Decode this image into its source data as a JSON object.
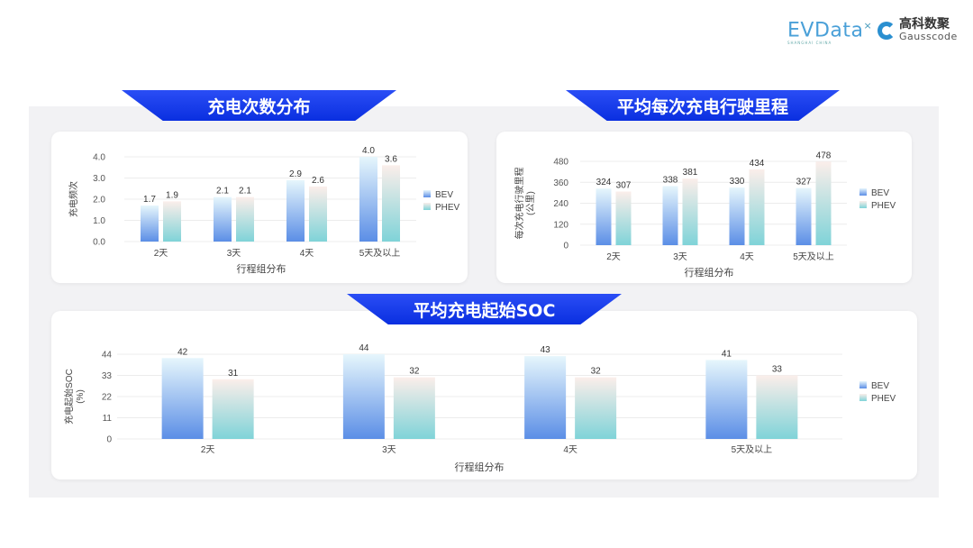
{
  "logos": {
    "evdata": "EVData",
    "evdata_sub": "SHANGHAI CHINA",
    "gauss_cn": "高科数聚",
    "gauss_en": "Gausscode"
  },
  "colors": {
    "bev_bottom": "#5b8ee6",
    "bev_top": "#e6f6fc",
    "phev_bottom": "#7fd3d8",
    "phev_top": "#fbeeea",
    "banner": "#1a3ef0"
  },
  "chart_data": [
    {
      "type": "bar",
      "title": "充电次数分布",
      "categories": [
        "2天",
        "3天",
        "4天",
        "5天及以上"
      ],
      "series": [
        {
          "name": "BEV",
          "values": [
            1.7,
            2.1,
            2.9,
            4.0
          ]
        },
        {
          "name": "PHEV",
          "values": [
            1.9,
            2.1,
            2.6,
            3.6
          ]
        }
      ],
      "xlabel": "行程组分布",
      "ylabel": "充电频次",
      "ylim": [
        0,
        4.0
      ],
      "yticks": [
        "0.0",
        "1.0",
        "2.0",
        "3.0",
        "4.0"
      ],
      "decimals": 1,
      "grid": true,
      "legend": "right"
    },
    {
      "type": "bar",
      "title": "平均每次充电行驶里程",
      "categories": [
        "2天",
        "3天",
        "4天",
        "5天及以上"
      ],
      "series": [
        {
          "name": "BEV",
          "values": [
            324,
            338,
            330,
            327
          ]
        },
        {
          "name": "PHEV",
          "values": [
            307,
            381,
            434,
            478
          ]
        }
      ],
      "xlabel": "行程组分布",
      "ylabel": "每次充电行驶里程",
      "ylabel2": "(公里)",
      "ylim": [
        0,
        480
      ],
      "yticks": [
        "0",
        "120",
        "240",
        "360",
        "480"
      ],
      "decimals": 0,
      "grid": true,
      "legend": "right"
    },
    {
      "type": "bar",
      "title": "平均充电起始SOC",
      "categories": [
        "2天",
        "3天",
        "4天",
        "5天及以上"
      ],
      "series": [
        {
          "name": "BEV",
          "values": [
            42,
            44,
            43,
            41
          ]
        },
        {
          "name": "PHEV",
          "values": [
            31,
            32,
            32,
            33
          ]
        }
      ],
      "xlabel": "行程组分布",
      "ylabel": "充电起始SOC",
      "ylabel2": "(%)",
      "ylim": [
        0,
        44
      ],
      "yticks": [
        "0",
        "11",
        "22",
        "33",
        "44"
      ],
      "decimals": 0,
      "grid": true,
      "legend": "right"
    }
  ]
}
